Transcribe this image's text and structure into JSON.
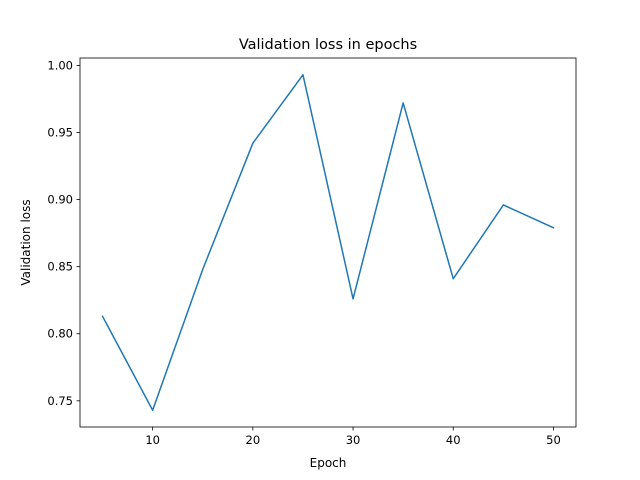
{
  "chart_data": {
    "type": "line",
    "title": "Validation loss in epochs",
    "xlabel": "Epoch",
    "ylabel": "Validation loss",
    "xlim": [
      2.75,
      52.25
    ],
    "ylim": [
      0.7305,
      1.0055
    ],
    "xticks": [
      10,
      20,
      30,
      40,
      50
    ],
    "xtick_labels": [
      "10",
      "20",
      "30",
      "40",
      "50"
    ],
    "yticks": [
      0.75,
      0.8,
      0.85,
      0.9,
      0.95,
      1.0
    ],
    "ytick_labels": [
      "0.75",
      "0.80",
      "0.85",
      "0.90",
      "0.95",
      "1.00"
    ],
    "grid": false,
    "legend": false,
    "series": [
      {
        "color": "#1f77b4",
        "x": [
          5,
          10,
          15,
          20,
          25,
          30,
          35,
          40,
          45,
          50
        ],
        "y": [
          0.813,
          0.743,
          0.848,
          0.942,
          0.993,
          0.826,
          0.972,
          0.841,
          0.896,
          0.879
        ]
      }
    ]
  }
}
